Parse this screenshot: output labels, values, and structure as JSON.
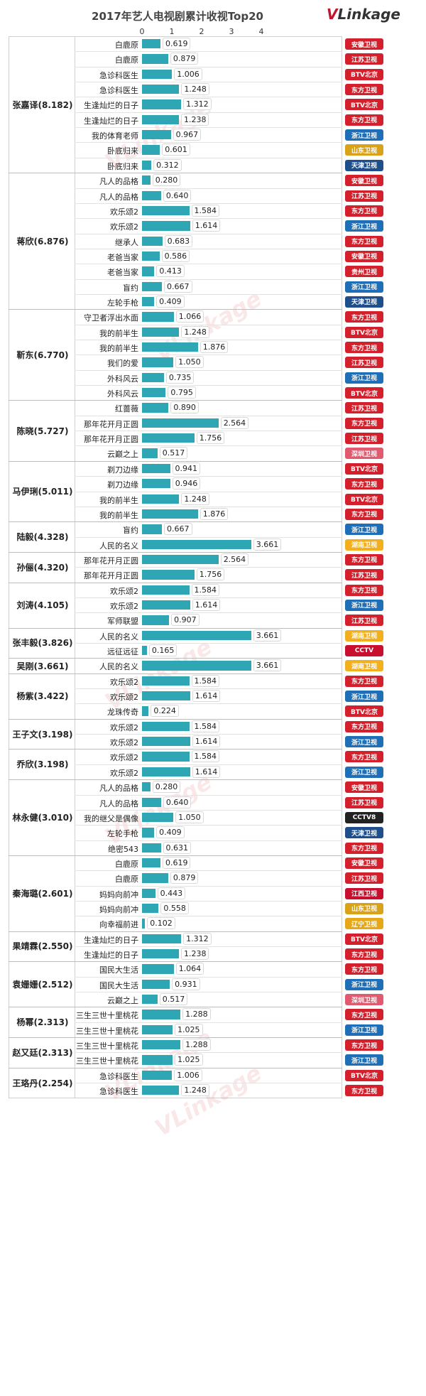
{
  "chart_data": {
    "type": "bar",
    "title": "2017年艺人电视剧累计收视Top20",
    "xlim": [
      0,
      4
    ],
    "xticks": [
      "0",
      "1",
      "2",
      "3",
      "4"
    ],
    "groups": [
      {
        "actor": "张嘉译(8.182)",
        "rows": [
          {
            "drama": "白鹿原",
            "value": 0.619,
            "channel": "安徽卫视"
          },
          {
            "drama": "白鹿原",
            "value": 0.879,
            "channel": "江苏卫视"
          },
          {
            "drama": "急诊科医生",
            "value": 1.006,
            "channel": "BTV北京"
          },
          {
            "drama": "急诊科医生",
            "value": 1.248,
            "channel": "东方卫视"
          },
          {
            "drama": "生逢灿烂的日子",
            "value": 1.312,
            "channel": "BTV北京"
          },
          {
            "drama": "生逢灿烂的日子",
            "value": 1.238,
            "channel": "东方卫视"
          },
          {
            "drama": "我的体育老师",
            "value": 0.967,
            "channel": "浙江卫视"
          },
          {
            "drama": "卧底归来",
            "value": 0.601,
            "channel": "山东卫视"
          },
          {
            "drama": "卧底归来",
            "value": 0.312,
            "channel": "天津卫视"
          }
        ]
      },
      {
        "actor": "蒋欣(6.876)",
        "rows": [
          {
            "drama": "凡人的品格",
            "value": 0.28,
            "channel": "安徽卫视"
          },
          {
            "drama": "凡人的品格",
            "value": 0.64,
            "channel": "江苏卫视"
          },
          {
            "drama": "欢乐颂2",
            "value": 1.584,
            "channel": "东方卫视"
          },
          {
            "drama": "欢乐颂2",
            "value": 1.614,
            "channel": "浙江卫视"
          },
          {
            "drama": "继承人",
            "value": 0.683,
            "channel": "东方卫视"
          },
          {
            "drama": "老爸当家",
            "value": 0.586,
            "channel": "安徽卫视"
          },
          {
            "drama": "老爸当家",
            "value": 0.413,
            "channel": "贵州卫视"
          },
          {
            "drama": "盲约",
            "value": 0.667,
            "channel": "浙江卫视"
          },
          {
            "drama": "左轮手枪",
            "value": 0.409,
            "channel": "天津卫视"
          }
        ]
      },
      {
        "actor": "靳东(6.770)",
        "rows": [
          {
            "drama": "守卫者浮出水面",
            "value": 1.066,
            "channel": "东方卫视"
          },
          {
            "drama": "我的前半生",
            "value": 1.248,
            "channel": "BTV北京"
          },
          {
            "drama": "我的前半生",
            "value": 1.876,
            "channel": "东方卫视"
          },
          {
            "drama": "我们的爱",
            "value": 1.05,
            "channel": "江苏卫视"
          },
          {
            "drama": "外科风云",
            "value": 0.735,
            "channel": "浙江卫视"
          },
          {
            "drama": "外科风云",
            "value": 0.795,
            "channel": "BTV北京"
          }
        ]
      },
      {
        "actor": "陈晓(5.727)",
        "rows": [
          {
            "drama": "红蔷薇",
            "value": 0.89,
            "channel": "江苏卫视"
          },
          {
            "drama": "那年花开月正圆",
            "value": 2.564,
            "channel": "东方卫视"
          },
          {
            "drama": "那年花开月正圆",
            "value": 1.756,
            "channel": "江苏卫视"
          },
          {
            "drama": "云巅之上",
            "value": 0.517,
            "channel": "深圳卫视"
          }
        ]
      },
      {
        "actor": "马伊琍(5.011)",
        "rows": [
          {
            "drama": "剃刀边缘",
            "value": 0.941,
            "channel": "BTV北京"
          },
          {
            "drama": "剃刀边缘",
            "value": 0.946,
            "channel": "东方卫视"
          },
          {
            "drama": "我的前半生",
            "value": 1.248,
            "channel": "BTV北京"
          },
          {
            "drama": "我的前半生",
            "value": 1.876,
            "channel": "东方卫视"
          }
        ]
      },
      {
        "actor": "陆毅(4.328)",
        "rows": [
          {
            "drama": "盲约",
            "value": 0.667,
            "channel": "浙江卫视"
          },
          {
            "drama": "人民的名义",
            "value": 3.661,
            "channel": "湖南卫视"
          }
        ]
      },
      {
        "actor": "孙俪(4.320)",
        "rows": [
          {
            "drama": "那年花开月正圆",
            "value": 2.564,
            "channel": "东方卫视"
          },
          {
            "drama": "那年花开月正圆",
            "value": 1.756,
            "channel": "江苏卫视"
          }
        ]
      },
      {
        "actor": "刘涛(4.105)",
        "rows": [
          {
            "drama": "欢乐颂2",
            "value": 1.584,
            "channel": "东方卫视"
          },
          {
            "drama": "欢乐颂2",
            "value": 1.614,
            "channel": "浙江卫视"
          },
          {
            "drama": "军师联盟",
            "value": 0.907,
            "channel": "江苏卫视"
          }
        ]
      },
      {
        "actor": "张丰毅(3.826)",
        "rows": [
          {
            "drama": "人民的名义",
            "value": 3.661,
            "channel": "湖南卫视"
          },
          {
            "drama": "远征远征",
            "value": 0.165,
            "channel": "CCTV"
          }
        ]
      },
      {
        "actor": "吴刚(3.661)",
        "rows": [
          {
            "drama": "人民的名义",
            "value": 3.661,
            "channel": "湖南卫视"
          }
        ]
      },
      {
        "actor": "杨紫(3.422)",
        "rows": [
          {
            "drama": "欢乐颂2",
            "value": 1.584,
            "channel": "东方卫视"
          },
          {
            "drama": "欢乐颂2",
            "value": 1.614,
            "channel": "浙江卫视"
          },
          {
            "drama": "龙珠传奇",
            "value": 0.224,
            "channel": "BTV北京"
          }
        ]
      },
      {
        "actor": "王子文(3.198)",
        "rows": [
          {
            "drama": "欢乐颂2",
            "value": 1.584,
            "channel": "东方卫视"
          },
          {
            "drama": "欢乐颂2",
            "value": 1.614,
            "channel": "浙江卫视"
          }
        ]
      },
      {
        "actor": "乔欣(3.198)",
        "rows": [
          {
            "drama": "欢乐颂2",
            "value": 1.584,
            "channel": "东方卫视"
          },
          {
            "drama": "欢乐颂2",
            "value": 1.614,
            "channel": "浙江卫视"
          }
        ]
      },
      {
        "actor": "林永健(3.010)",
        "rows": [
          {
            "drama": "凡人的品格",
            "value": 0.28,
            "channel": "安徽卫视"
          },
          {
            "drama": "凡人的品格",
            "value": 0.64,
            "channel": "江苏卫视"
          },
          {
            "drama": "我的继父是偶像",
            "value": 1.05,
            "channel": "CCTV8"
          },
          {
            "drama": "左轮手枪",
            "value": 0.409,
            "channel": "天津卫视"
          },
          {
            "drama": "绝密543",
            "value": 0.631,
            "channel": "东方卫视"
          }
        ]
      },
      {
        "actor": "秦海璐(2.601)",
        "rows": [
          {
            "drama": "白鹿原",
            "value": 0.619,
            "channel": "安徽卫视"
          },
          {
            "drama": "白鹿原",
            "value": 0.879,
            "channel": "江苏卫视"
          },
          {
            "drama": "妈妈向前冲",
            "value": 0.443,
            "channel": "江西卫视"
          },
          {
            "drama": "妈妈向前冲",
            "value": 0.558,
            "channel": "山东卫视"
          },
          {
            "drama": "向幸福前进",
            "value": 0.102,
            "channel": "辽宁卫视"
          }
        ]
      },
      {
        "actor": "果靖霖(2.550)",
        "rows": [
          {
            "drama": "生逢灿烂的日子",
            "value": 1.312,
            "channel": "BTV北京"
          },
          {
            "drama": "生逢灿烂的日子",
            "value": 1.238,
            "channel": "东方卫视"
          }
        ]
      },
      {
        "actor": "袁姗姗(2.512)",
        "rows": [
          {
            "drama": "国民大生活",
            "value": 1.064,
            "channel": "东方卫视"
          },
          {
            "drama": "国民大生活",
            "value": 0.931,
            "channel": "浙江卫视"
          },
          {
            "drama": "云巅之上",
            "value": 0.517,
            "channel": "深圳卫视"
          }
        ]
      },
      {
        "actor": "杨幂(2.313)",
        "rows": [
          {
            "drama": "三生三世十里桃花",
            "value": 1.288,
            "channel": "东方卫视"
          },
          {
            "drama": "三生三世十里桃花",
            "value": 1.025,
            "channel": "浙江卫视"
          }
        ]
      },
      {
        "actor": "赵又廷(2.313)",
        "rows": [
          {
            "drama": "三生三世十里桃花",
            "value": 1.288,
            "channel": "东方卫视"
          },
          {
            "drama": "三生三世十里桃花",
            "value": 1.025,
            "channel": "浙江卫视"
          }
        ]
      },
      {
        "actor": "王珞丹(2.254)",
        "rows": [
          {
            "drama": "急诊科医生",
            "value": 1.006,
            "channel": "BTV北京"
          },
          {
            "drama": "急诊科医生",
            "value": 1.248,
            "channel": "东方卫视"
          }
        ]
      }
    ]
  },
  "brand": {
    "v": "V",
    "rest": "Linkage"
  },
  "channel_colors": {
    "安徽卫视": "#d4202c",
    "江苏卫视": "#d4202c",
    "东方卫视": "#d4202c",
    "BTV北京": "#d4202c",
    "浙江卫视": "#1f6fb8",
    "山东卫视": "#d9a21b",
    "天津卫视": "#1f4e8c",
    "贵州卫视": "#d4202c",
    "深圳卫视": "#e05a70",
    "湖南卫视": "#f2b01e",
    "CCTV": "#c8102e",
    "CCTV8": "#222222",
    "江西卫视": "#c8102e",
    "辽宁卫视": "#e6a817"
  }
}
